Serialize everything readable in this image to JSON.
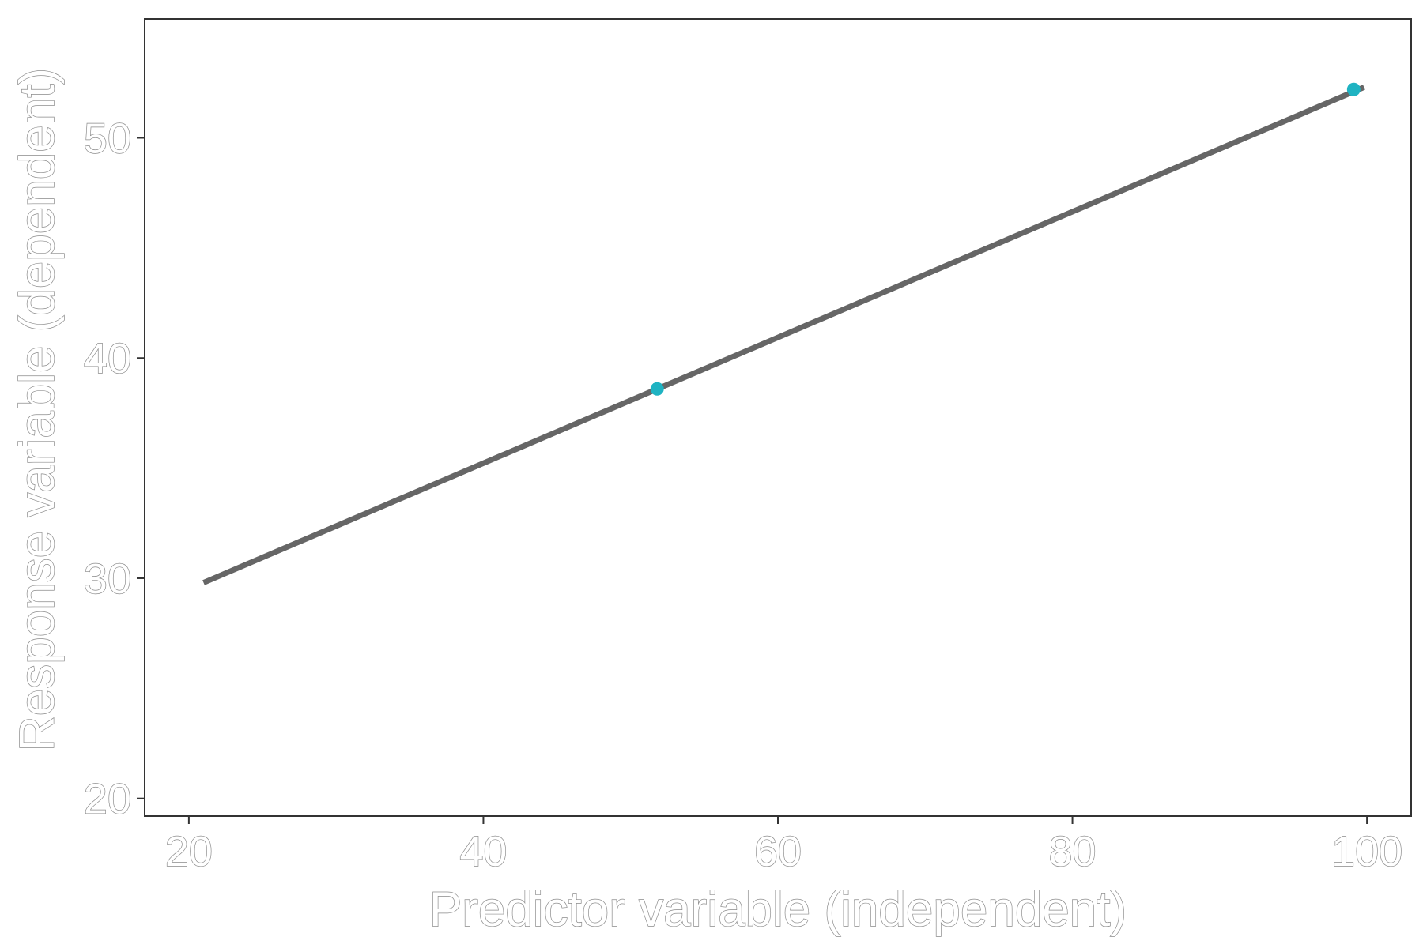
{
  "chart_data": {
    "type": "line",
    "title": "",
    "xlabel": "Predictor variable (independent)",
    "ylabel": "Response variable (dependent)",
    "xlim": [
      17,
      103
    ],
    "ylim": [
      19.2,
      55.4
    ],
    "x_ticks": [
      20,
      40,
      60,
      80,
      100
    ],
    "y_ticks": [
      20,
      30,
      40,
      50
    ],
    "grid": false,
    "legend": "none",
    "series": [
      {
        "type": "line",
        "x": [
          21,
          99.8
        ],
        "y": [
          29.8,
          52.3
        ],
        "color": "#666666"
      },
      {
        "type": "scatter",
        "x": [
          51.8,
          99.1
        ],
        "y": [
          38.6,
          52.2
        ],
        "color": "#1fb3c2"
      }
    ],
    "colors": {
      "line": "#666666",
      "points": "#1fb3c2",
      "axis": "#333333"
    }
  }
}
